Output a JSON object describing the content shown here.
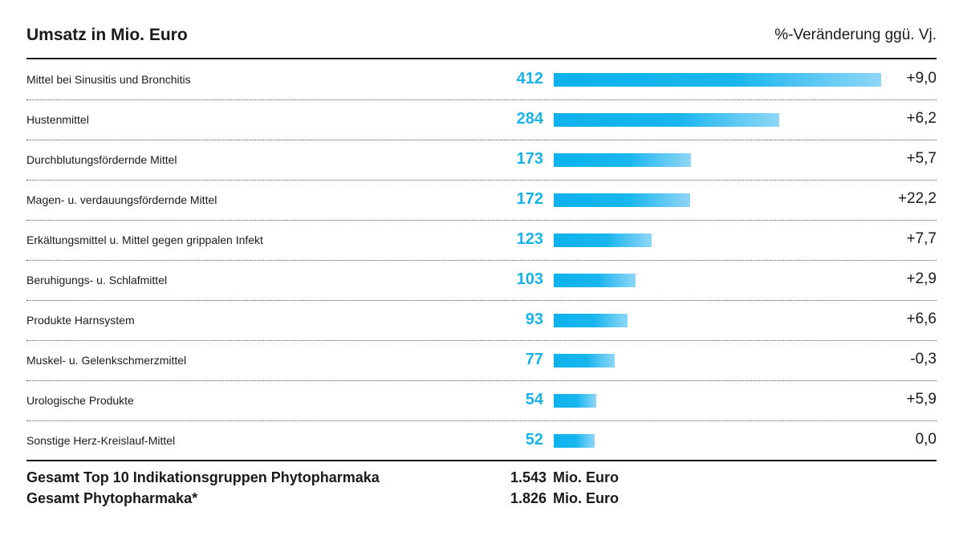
{
  "header": {
    "title": "Umsatz in Mio. Euro",
    "subtitle": "%-Veränderung ggü. Vj."
  },
  "chart_data": {
    "type": "bar",
    "orientation": "horizontal",
    "title": "Umsatz in Mio. Euro",
    "secondary_label": "%-Veränderung ggü. Vj.",
    "categories": [
      "Mittel bei Sinusitis und Bronchitis",
      "Hustenmittel",
      "Durchblutungsfördernde Mittel",
      "Magen- u. verdauungsfördernde Mittel",
      "Erkältungsmittel u. Mittel gegen grippalen Infekt",
      "Beruhigungs- u. Schlafmittel",
      "Produkte Harnsystem",
      "Muskel- u. Gelenkschmerzmittel",
      "Urologische Produkte",
      "Sonstige Herz-Kreislauf-Mittel"
    ],
    "values": [
      412,
      284,
      173,
      172,
      123,
      103,
      93,
      77,
      54,
      52
    ],
    "changes": [
      "+9,0",
      "+6,2",
      "+5,7",
      "+22,2",
      "+7,7",
      "+2,9",
      "+6,6",
      "-0,3",
      "+5,9",
      "0,0"
    ],
    "xlim": [
      0,
      412
    ],
    "grid": false,
    "colors": {
      "bar_start": "#0db2ec",
      "bar_end": "#8fd6f6",
      "value_text": "#19b3ea"
    }
  },
  "totals": [
    {
      "label": "Gesamt Top 10 Indikationsgruppen Phytopharmaka",
      "value": "1.543",
      "unit": "Mio. Euro"
    },
    {
      "label": "Gesamt Phytopharmaka*",
      "value": "1.826",
      "unit": "Mio. Euro"
    }
  ]
}
